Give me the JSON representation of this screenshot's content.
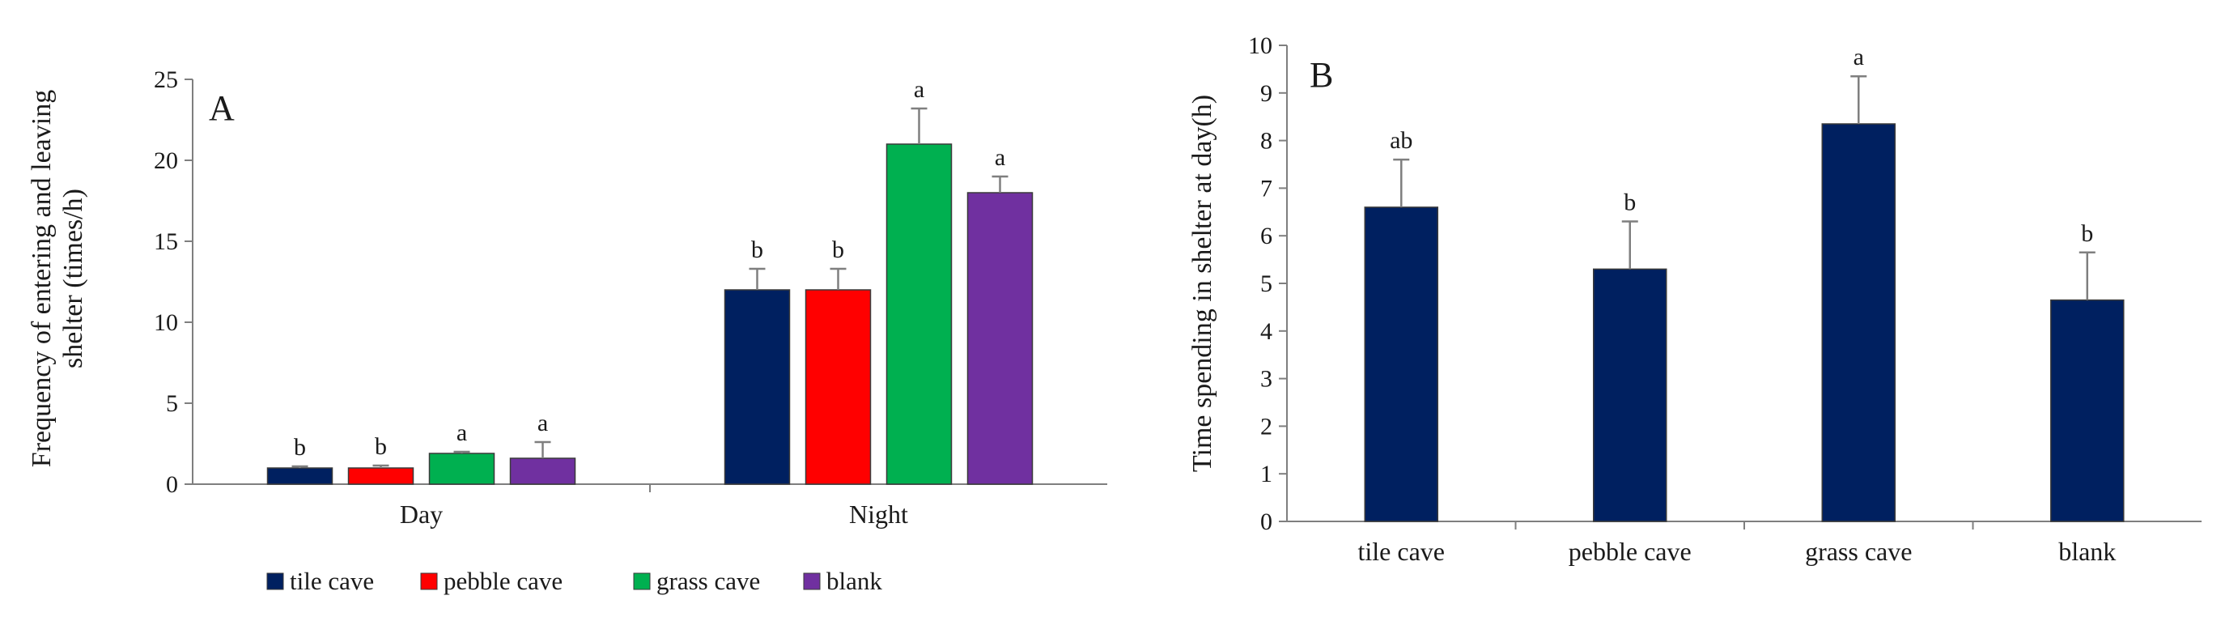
{
  "chart_data": [
    {
      "type": "bar",
      "panel_label": "A",
      "title": "",
      "xlabel": "",
      "ylabel": "Frequency of entering and leaving shelter (times/h)",
      "ylabel_lines": [
        "Frequency of entering and leaving",
        "shelter (times/h)"
      ],
      "ylim": [
        0,
        25
      ],
      "yticks": [
        0,
        5,
        10,
        15,
        20,
        25
      ],
      "categories": [
        "Day",
        "Night"
      ],
      "legend_position": "bottom",
      "series": [
        {
          "name": "tile cave",
          "color": "#002060",
          "values": [
            1.0,
            12.0
          ],
          "errors": [
            0.1,
            1.3
          ],
          "sig": [
            "b",
            "b"
          ]
        },
        {
          "name": "pebble cave",
          "color": "#ff0000",
          "values": [
            1.0,
            12.0
          ],
          "errors": [
            0.15,
            1.3
          ],
          "sig": [
            "b",
            "b"
          ]
        },
        {
          "name": "grass cave",
          "color": "#00b050",
          "values": [
            1.9,
            21.0
          ],
          "errors": [
            0.1,
            2.2
          ],
          "sig": [
            "a",
            "a"
          ]
        },
        {
          "name": "blank",
          "color": "#7030a0",
          "values": [
            1.6,
            18.0
          ],
          "errors": [
            1.0,
            1.0
          ],
          "sig": [
            "a",
            "a"
          ]
        }
      ]
    },
    {
      "type": "bar",
      "panel_label": "B",
      "title": "",
      "xlabel": "",
      "ylabel": "Time spending in shelter at day(h)",
      "ylim": [
        0,
        10
      ],
      "yticks": [
        0,
        1,
        2,
        3,
        4,
        5,
        6,
        7,
        8,
        9,
        10
      ],
      "categories": [
        "tile cave",
        "pebble cave",
        "grass cave",
        "blank"
      ],
      "color": "#002060",
      "values": [
        6.6,
        5.3,
        8.35,
        4.65
      ],
      "errors": [
        1.0,
        1.0,
        1.0,
        1.0
      ],
      "sig": [
        "ab",
        "b",
        "a",
        "b"
      ]
    }
  ]
}
